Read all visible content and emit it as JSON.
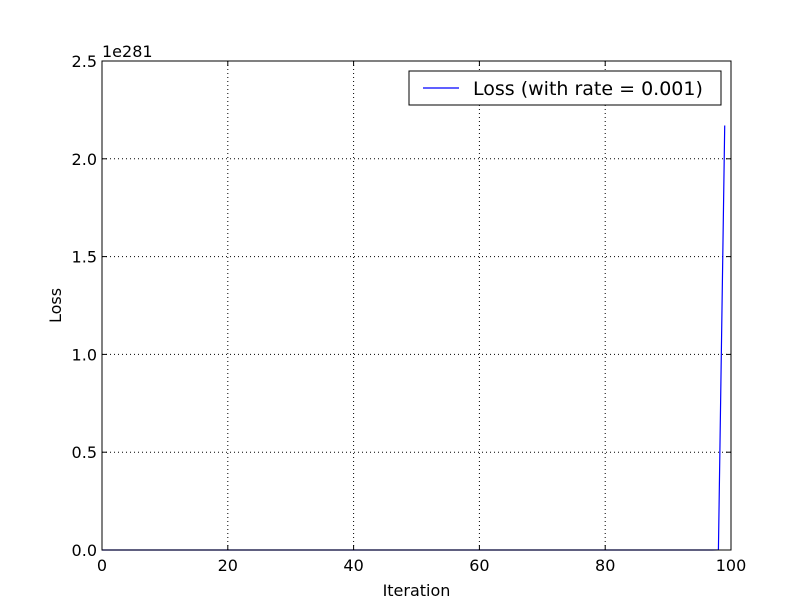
{
  "chart_data": {
    "type": "line",
    "xlabel": "Iteration",
    "ylabel": "Loss",
    "y_offset_label": "1e281",
    "xlim": [
      0,
      100
    ],
    "ylim": [
      0,
      2.5
    ],
    "x_ticks": [
      0,
      20,
      40,
      60,
      80,
      100
    ],
    "x_tick_labels": [
      "0",
      "20",
      "40",
      "60",
      "80",
      "100"
    ],
    "y_ticks": [
      0.0,
      0.5,
      1.0,
      1.5,
      2.0,
      2.5
    ],
    "y_tick_labels": [
      "0.0",
      "0.5",
      "1.0",
      "1.5",
      "2.0",
      "2.5"
    ],
    "grid": true,
    "legend_position": "top-right",
    "series": [
      {
        "name": "Loss (with rate = 0.001)",
        "color": "#0000ff",
        "x": [
          0,
          10,
          20,
          30,
          40,
          50,
          60,
          70,
          80,
          90,
          97,
          98,
          99
        ],
        "y": [
          0,
          0,
          0,
          0,
          0,
          0,
          0,
          0,
          0,
          0,
          0,
          0.0005,
          2.17
        ]
      }
    ]
  }
}
